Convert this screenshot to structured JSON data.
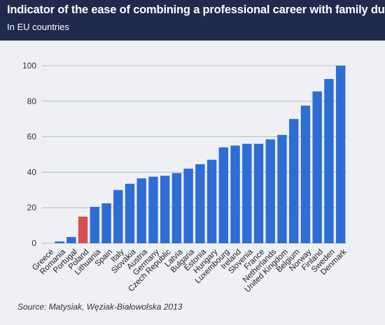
{
  "header": {
    "title": "Indicator of the ease of combining a professional career with family duties",
    "subtitle": "In EU countries"
  },
  "source": "Source: Matysiak, Węziak-Białowolska 2013",
  "colors": {
    "header_bg": "#1f2a4d",
    "bar": "#2e6cd6",
    "highlight": "#d5504d",
    "grid": "#b9bcc3",
    "background": "#eef0f4"
  },
  "chart_data": {
    "type": "bar",
    "categories": [
      "Greece",
      "Romania",
      "Portugal",
      "Poland",
      "Lithuania",
      "Spain",
      "Italy",
      "Slovakia",
      "Austria",
      "Germany",
      "Czech Republic",
      "Latvia",
      "Bulgaria",
      "Estonia",
      "Hungary",
      "Luxembourg",
      "Ireland",
      "Slovenia",
      "France",
      "Netherlands",
      "United Kingdom",
      "Belgium",
      "Norway",
      "Finland",
      "Sweden",
      "Denmark"
    ],
    "values": [
      0,
      1,
      3.5,
      15,
      20.5,
      22.5,
      30,
      33.5,
      36.5,
      37.5,
      38,
      39.5,
      42,
      44.5,
      47,
      54,
      55,
      56,
      56,
      58.5,
      61,
      70,
      77.5,
      85.5,
      92.5,
      100
    ],
    "highlight": "Poland",
    "ylim": [
      0,
      100
    ],
    "yticks": [
      0,
      20,
      40,
      60,
      80,
      100
    ],
    "grid": true
  }
}
